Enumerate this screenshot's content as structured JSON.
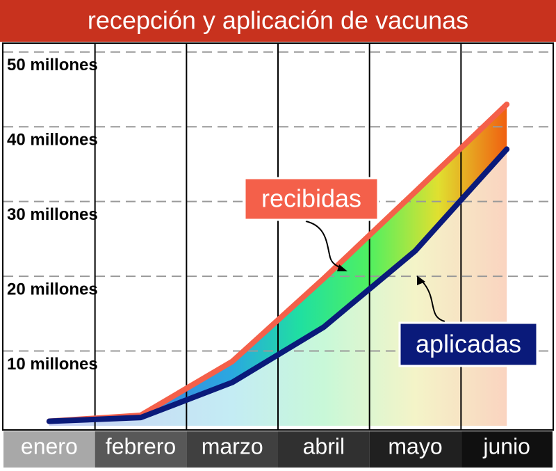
{
  "chart_data": {
    "type": "area-line",
    "title": "recepción y aplicación de vacunas",
    "categories": [
      "enero",
      "febrero",
      "marzo",
      "abril",
      "mayo",
      "junio"
    ],
    "series": [
      {
        "name": "recibidas",
        "color": "#f4604a",
        "values": [
          0.6,
          1.4,
          8.6,
          19.7,
          31.3,
          43
        ]
      },
      {
        "name": "aplicadas",
        "color": "#0a1a7a",
        "values": [
          0.6,
          1.1,
          5.8,
          13.2,
          23.4,
          37
        ]
      }
    ],
    "ylim": [
      0,
      51
    ],
    "yticks": [
      {
        "value": 10,
        "label": "10 millones"
      },
      {
        "value": 20,
        "label": "20 millones"
      },
      {
        "value": 30,
        "label": "30 millones"
      },
      {
        "value": 40,
        "label": "40 millones"
      },
      {
        "value": 50,
        "label": "50 millones"
      }
    ],
    "grid": true
  }
}
